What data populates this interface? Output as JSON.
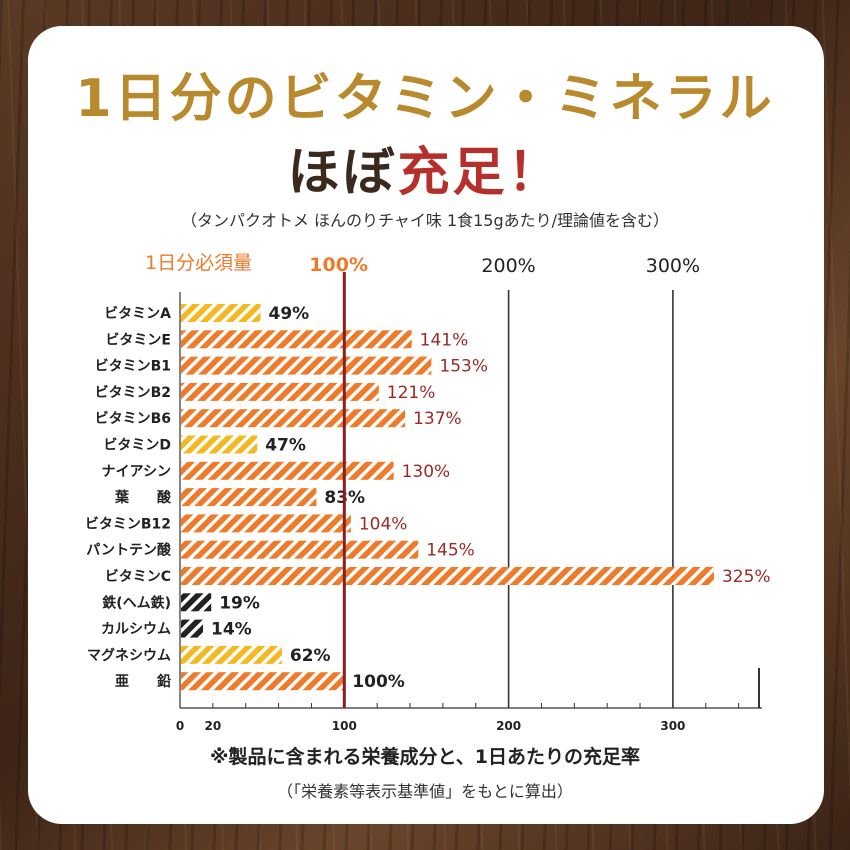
{
  "title_line1": "1日分のビタミン・ミネラル",
  "title_line2_prefix": "ほぼ",
  "title_line2_highlight": "充足！",
  "subtitle": "（タンパクオトメ ほんのりチャイ味 1食15gあたり/理論値を含む）",
  "footnote_line1": "※製品に含まれる栄養成分と、1日あたりの充足率",
  "footnote_line2": "（「栄養素等表示基準値」をもとに算出）",
  "colors": {
    "orange": "#ee7a2a",
    "yellow": "#f4b820",
    "black": "#222222",
    "red_text": "#9a2a24",
    "ref_line": "#8b1e1e",
    "title_gold": "#b8892d",
    "title_red": "#b5302a"
  },
  "chart_data": {
    "type": "bar",
    "orientation": "horizontal",
    "reference_label": "1日分必須量",
    "reference_value_label": "100%",
    "top_tick_labels": [
      "200%",
      "300%"
    ],
    "x_tick_labels": [
      "0",
      "20",
      "100",
      "200",
      "300"
    ],
    "xlim": [
      0,
      350
    ],
    "grid": true,
    "categories": [
      "ビタミンA",
      "ビタミンE",
      "ビタミンB1",
      "ビタミンB2",
      "ビタミンB6",
      "ビタミンD",
      "ナイアシン",
      "葉　　酸",
      "ビタミンB12",
      "パントテン酸",
      "ビタミンC",
      "鉄(ヘム鉄)",
      "カルシウム",
      "マグネシウム",
      "亜　　鉛"
    ],
    "values": [
      49,
      141,
      153,
      121,
      137,
      47,
      130,
      83,
      104,
      145,
      325,
      19,
      14,
      62,
      100
    ],
    "value_labels": [
      "49%",
      "141%",
      "153%",
      "121%",
      "137%",
      "47%",
      "130%",
      "83%",
      "104%",
      "145%",
      "325%",
      "19%",
      "14%",
      "62%",
      "100%"
    ],
    "bar_colors": [
      "yellow",
      "orange",
      "orange",
      "orange",
      "orange",
      "yellow",
      "orange",
      "orange",
      "orange",
      "orange",
      "orange",
      "black",
      "black",
      "yellow",
      "orange"
    ]
  }
}
